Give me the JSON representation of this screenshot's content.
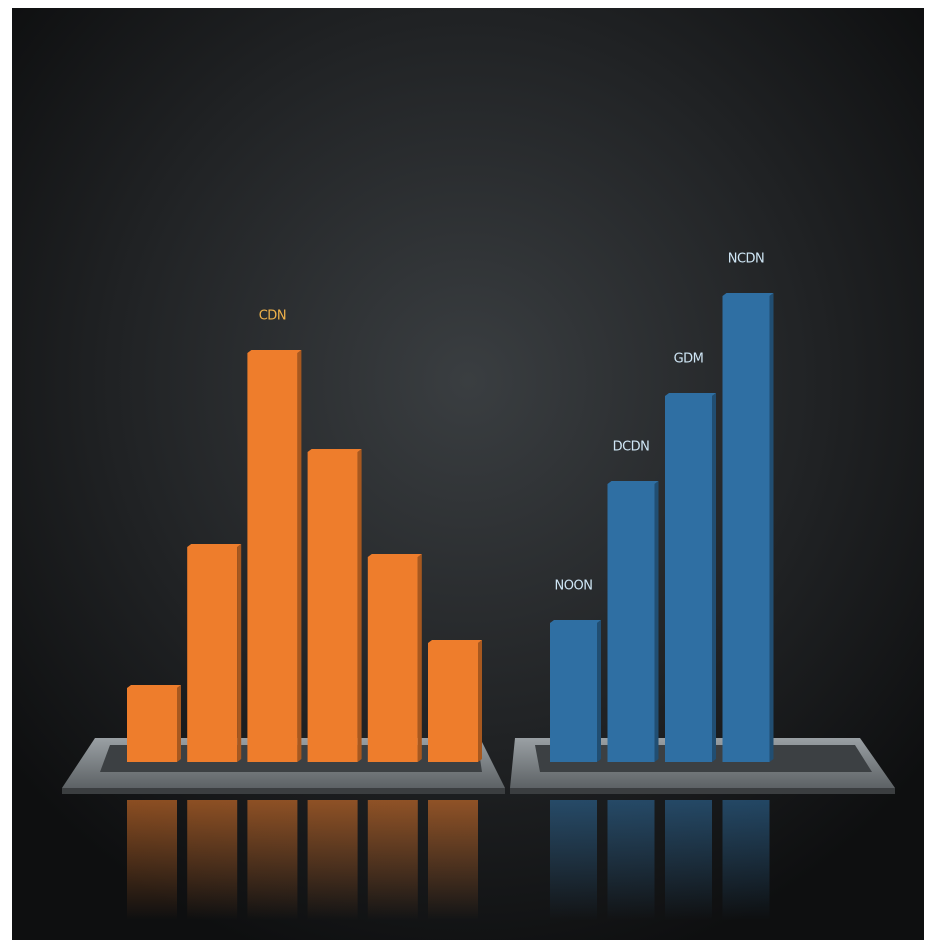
{
  "chart_data": [
    {
      "type": "bar",
      "categories": [
        null,
        null,
        "CDN",
        null,
        null,
        null
      ],
      "values": [
        74,
        215,
        409,
        310,
        205,
        119
      ],
      "color": "#ee7d2c",
      "label_color": "#f0b24a"
    },
    {
      "type": "bar",
      "categories": [
        "NOON",
        "DCDN",
        "GDM",
        "NCDN"
      ],
      "values": [
        139,
        278,
        366,
        466
      ],
      "color": "#2f6fa3",
      "label_color": "#cfe6f5"
    }
  ]
}
